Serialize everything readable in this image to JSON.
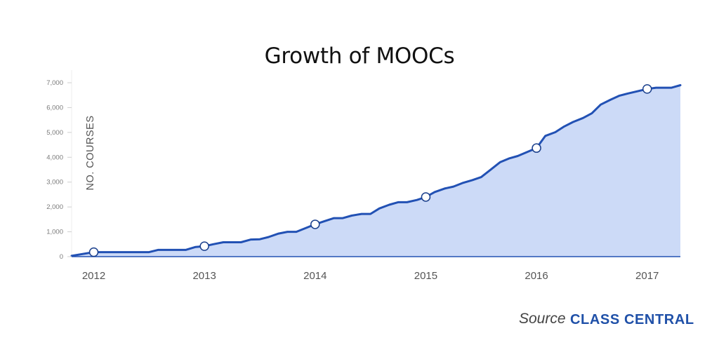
{
  "chart_data": {
    "type": "area",
    "title": "Growth of MOOCs",
    "ylabel": "NO. COURSES",
    "xlabel": "",
    "ylim": [
      0,
      7000
    ],
    "yticks": [
      0,
      1000,
      2000,
      3000,
      4000,
      5000,
      6000,
      7000
    ],
    "ytick_labels": [
      "0",
      "1,000",
      "2,000",
      "3,000",
      "4,000",
      "5,000",
      "6,000",
      "7,000"
    ],
    "xlim": [
      2011.8,
      2017.3
    ],
    "xticks": [
      2012,
      2013,
      2014,
      2015,
      2016,
      2017
    ],
    "xtick_labels": [
      "2012",
      "2013",
      "2014",
      "2015",
      "2016",
      "2017"
    ],
    "grid": false,
    "series": [
      {
        "x": [
          2011.8,
          2012.0,
          2012.1,
          2012.5,
          2012.58,
          2012.83,
          2012.92,
          2013.0,
          2013.08,
          2013.17,
          2013.33,
          2013.42,
          2013.5,
          2013.58,
          2013.67,
          2013.75,
          2013.83,
          2014.0,
          2014.08,
          2014.17,
          2014.25,
          2014.33,
          2014.42,
          2014.5,
          2014.58,
          2014.67,
          2014.75,
          2014.83,
          2014.92,
          2015.0,
          2015.08,
          2015.17,
          2015.25,
          2015.33,
          2015.42,
          2015.5,
          2015.58,
          2015.67,
          2015.75,
          2015.83,
          2016.0,
          2016.08,
          2016.17,
          2016.25,
          2016.33,
          2016.42,
          2016.5,
          2016.58,
          2016.67,
          2016.75,
          2016.83,
          2017.0,
          2017.08,
          2017.22,
          2017.3
        ],
        "values": [
          30,
          180,
          180,
          180,
          270,
          270,
          390,
          420,
          500,
          580,
          580,
          690,
          700,
          790,
          930,
          1000,
          1000,
          1300,
          1420,
          1550,
          1550,
          1650,
          1720,
          1720,
          1940,
          2090,
          2190,
          2190,
          2280,
          2400,
          2600,
          2740,
          2820,
          2960,
          3080,
          3200,
          3480,
          3800,
          3950,
          4050,
          4370,
          4860,
          5010,
          5240,
          5420,
          5580,
          5770,
          6120,
          6320,
          6480,
          6570,
          6750,
          6800,
          6800,
          6900
        ],
        "marker_x": [
          2012,
          2013,
          2014,
          2015,
          2016,
          2017
        ],
        "marker_values": [
          180,
          420,
          1300,
          2400,
          4370,
          6750
        ],
        "color": "#2251b4",
        "fill": "#ccdaf7"
      }
    ]
  },
  "source": {
    "label": "Source",
    "brand": "CLASS CENTRAL"
  }
}
